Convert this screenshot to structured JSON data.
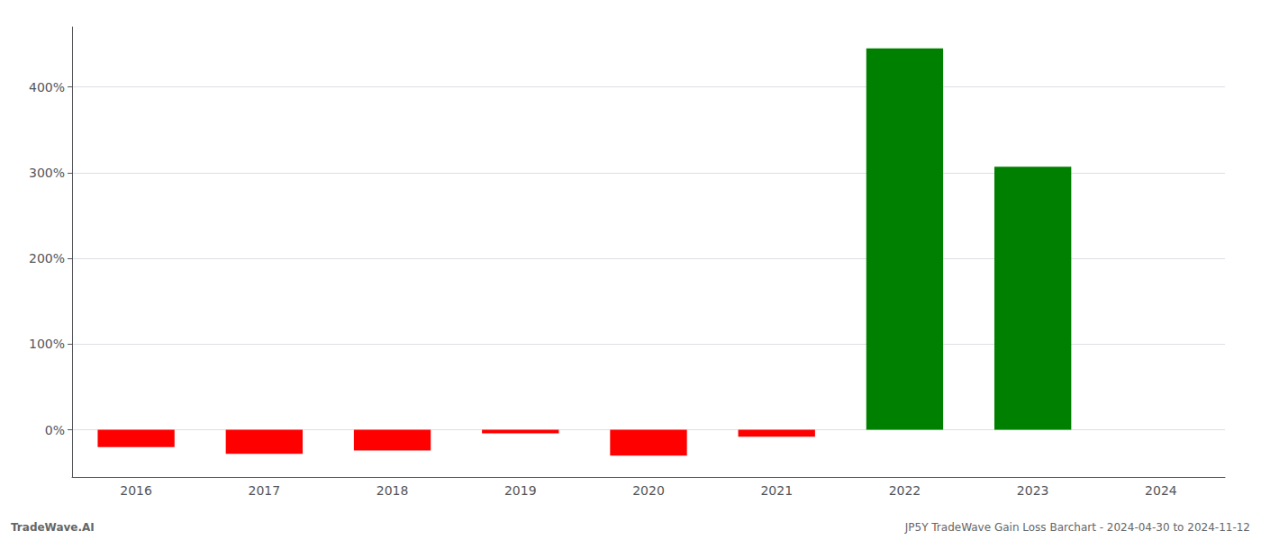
{
  "chart_data": {
    "type": "bar",
    "categories": [
      "2016",
      "2017",
      "2018",
      "2019",
      "2020",
      "2021",
      "2022",
      "2023",
      "2024"
    ],
    "values": [
      -20.0,
      -28.0,
      -24.0,
      -4.0,
      -30.0,
      -8.0,
      445.0,
      307.0,
      0.0
    ],
    "colors": [
      "#ff0000",
      "#ff0000",
      "#ff0000",
      "#ff0000",
      "#ff0000",
      "#ff0000",
      "#008000",
      "#008000",
      "#ff0000"
    ],
    "ylim": [
      -55,
      470
    ],
    "yticks": [
      {
        "value": 0,
        "label": "0%"
      },
      {
        "value": 100,
        "label": "100%"
      },
      {
        "value": 200,
        "label": "200%"
      },
      {
        "value": 300,
        "label": "300%"
      },
      {
        "value": 400,
        "label": "400%"
      }
    ],
    "grid": true,
    "annotations": [
      "TradeWave.AI",
      "JP5Y TradeWave Gain Loss Barchart - 2024-04-30 to 2024-11-12"
    ]
  }
}
